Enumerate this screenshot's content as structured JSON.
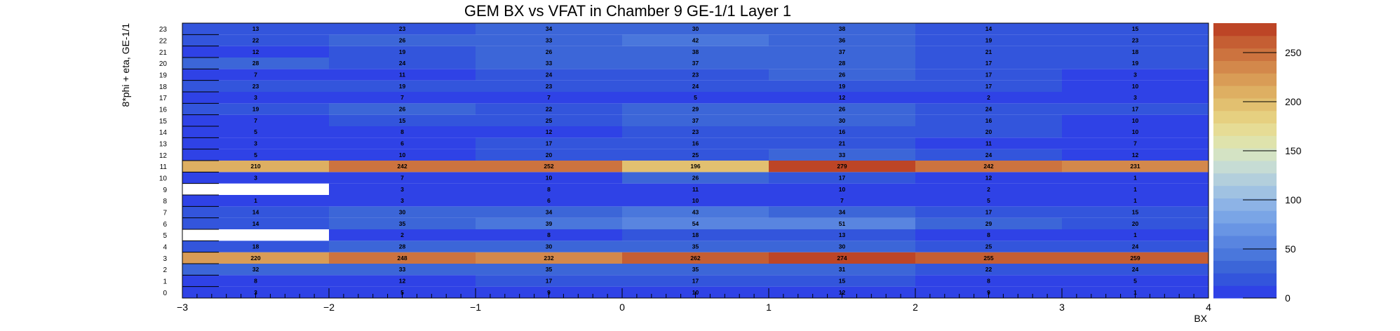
{
  "chart_data": {
    "type": "heatmap",
    "title": "GEM BX vs VFAT in Chamber 9 GE-1/1 Layer 1",
    "xlabel": "BX",
    "ylabel": "8*phi + eta, GE-1/1",
    "xlim": [
      -3,
      4
    ],
    "ylim": [
      0,
      24
    ],
    "x_ticks": [
      "−3",
      "−2",
      "−1",
      "0",
      "1",
      "2",
      "3",
      "4"
    ],
    "y_ticks": [
      "0",
      "1",
      "2",
      "3",
      "4",
      "5",
      "6",
      "7",
      "8",
      "9",
      "10",
      "11",
      "12",
      "13",
      "14",
      "15",
      "16",
      "17",
      "18",
      "19",
      "20",
      "21",
      "22",
      "23"
    ],
    "x_bins": [
      -3,
      -2,
      -1,
      0,
      1,
      2,
      3
    ],
    "zlim": [
      0,
      280
    ],
    "z_ticks": [
      0,
      50,
      100,
      150,
      200,
      250
    ],
    "z_tick_labels": [
      "0",
      "50",
      "100",
      "150",
      "200",
      "250"
    ],
    "palette": [
      "#2f42e6",
      "#3355dc",
      "#3c66d8",
      "#4a77dc",
      "#5985e0",
      "#6995e4",
      "#7aa5e6",
      "#8db3e6",
      "#a0c2e2",
      "#b3cfdc",
      "#c6dcd4",
      "#d4e3c4",
      "#dfe3ac",
      "#e6dc95",
      "#e6d080",
      "#e2c070",
      "#deaf62",
      "#d99c56",
      "#d3884b",
      "#cc733f",
      "#c55e33",
      "#bd4526"
    ],
    "values": [
      [
        3,
        5,
        9,
        10,
        12,
        9,
        1
      ],
      [
        8,
        12,
        17,
        17,
        15,
        8,
        5
      ],
      [
        32,
        33,
        35,
        35,
        31,
        22,
        24
      ],
      [
        220,
        248,
        232,
        262,
        274,
        255,
        259
      ],
      [
        18,
        28,
        30,
        35,
        30,
        25,
        24
      ],
      [
        null,
        2,
        8,
        18,
        13,
        8,
        1
      ],
      [
        14,
        35,
        39,
        54,
        51,
        29,
        20
      ],
      [
        14,
        30,
        34,
        43,
        34,
        17,
        15
      ],
      [
        1,
        3,
        6,
        10,
        7,
        5,
        1
      ],
      [
        null,
        3,
        8,
        11,
        10,
        2,
        1
      ],
      [
        3,
        7,
        10,
        26,
        17,
        12,
        1
      ],
      [
        210,
        242,
        252,
        196,
        279,
        242,
        231
      ],
      [
        5,
        10,
        20,
        25,
        33,
        24,
        12
      ],
      [
        3,
        6,
        17,
        16,
        21,
        11,
        7
      ],
      [
        5,
        8,
        12,
        23,
        16,
        20,
        10
      ],
      [
        7,
        15,
        25,
        37,
        30,
        16,
        10
      ],
      [
        19,
        26,
        22,
        29,
        26,
        24,
        17
      ],
      [
        3,
        7,
        7,
        5,
        12,
        2,
        3
      ],
      [
        23,
        19,
        23,
        24,
        19,
        17,
        10
      ],
      [
        7,
        11,
        24,
        23,
        26,
        17,
        3
      ],
      [
        28,
        24,
        33,
        37,
        28,
        17,
        19
      ],
      [
        12,
        19,
        26,
        38,
        37,
        21,
        18
      ],
      [
        22,
        26,
        33,
        42,
        36,
        19,
        23
      ],
      [
        13,
        23,
        34,
        30,
        38,
        14,
        15
      ]
    ],
    "grid": false,
    "legend": "color bar on the right"
  }
}
